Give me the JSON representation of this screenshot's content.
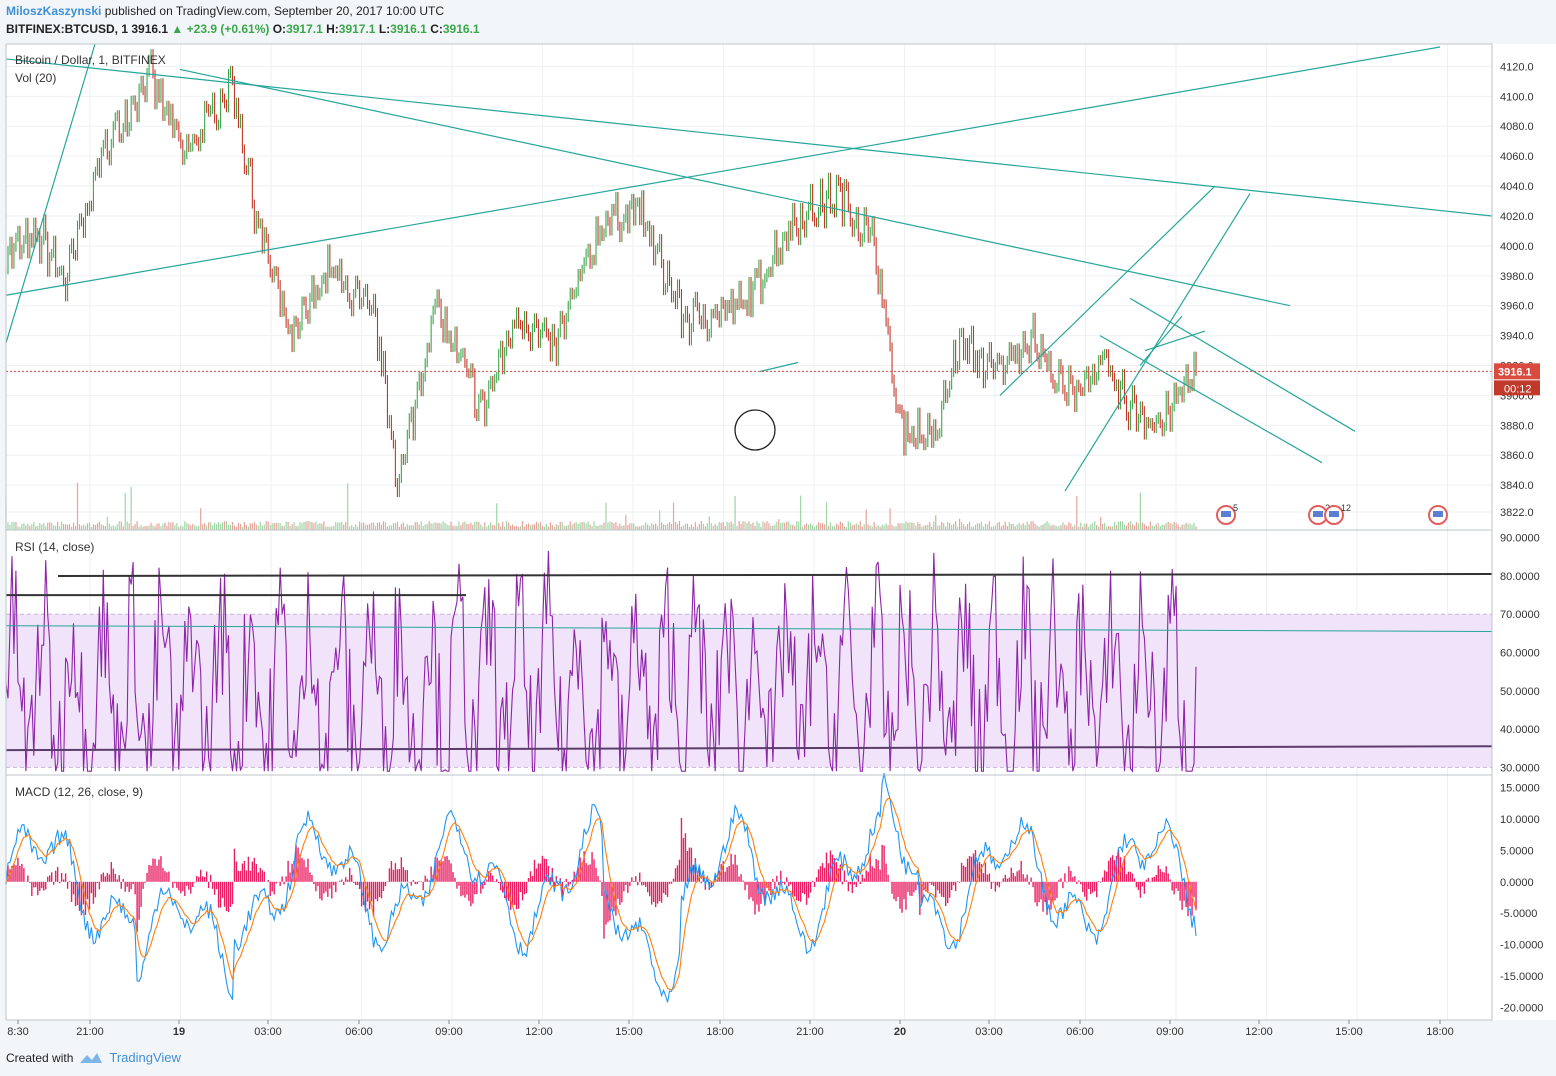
{
  "header": {
    "author": "MiloszKaszynski",
    "published": "published on TradingView.com, September 20, 2017 10:00 UTC",
    "symbol": "BITFINEX:BTCUSD, 1",
    "last": "3916.1",
    "change": "+23.9 (+0.61%)",
    "o_label": "O:",
    "o": "3917.1",
    "h_label": "H:",
    "h": "3917.1",
    "l_label": "L:",
    "l": "3916.1",
    "c_label": "C:",
    "c": "3916.1"
  },
  "panes": {
    "price_title": "Bitcoin / Dollar, 1, BITFINEX",
    "vol_title": "Vol (20)",
    "rsi_title": "RSI (14, close)",
    "macd_title": "MACD (12, 26, close, 9)"
  },
  "price_badge": "3916.1",
  "countdown_badge": "00:12",
  "event_badges": [
    "5",
    "2",
    "12"
  ],
  "footer": {
    "created": "Created with",
    "brand": "TradingView"
  },
  "colors": {
    "up": "#3ba64b",
    "down": "#c0392b",
    "trendline": "#26a69a",
    "rsi": "#8e24aa",
    "rsi_band": "#f1e3fa",
    "macd": "#2196f3",
    "signal": "#ff7f0e",
    "histogram": "#e91e63",
    "price_line": "#d94b3f"
  },
  "chart_data": [
    {
      "type": "line",
      "name": "price",
      "title": "Bitcoin / Dollar, 1, BITFINEX",
      "ylim": [
        3810,
        4135
      ],
      "y_ticks": [
        3822,
        3840,
        3860,
        3880,
        3900,
        3920,
        3940,
        3960,
        3980,
        4000,
        4020,
        4040,
        4060,
        4080,
        4100,
        4120
      ],
      "x_ticks": [
        "8:30",
        "21:00",
        "19",
        "03:00",
        "06:00",
        "09:00",
        "12:00",
        "15:00",
        "18:00",
        "21:00",
        "20",
        "03:00",
        "06:00",
        "09:00",
        "12:00",
        "15:00",
        "18:00"
      ],
      "approx_path": [
        [
          0,
          3995
        ],
        [
          0.03,
          4005
        ],
        [
          0.05,
          3975
        ],
        [
          0.08,
          4060
        ],
        [
          0.12,
          4115
        ],
        [
          0.15,
          4060
        ],
        [
          0.19,
          4110
        ],
        [
          0.21,
          4020
        ],
        [
          0.24,
          3935
        ],
        [
          0.27,
          3985
        ],
        [
          0.31,
          3950
        ],
        [
          0.33,
          3840
        ],
        [
          0.36,
          3960
        ],
        [
          0.4,
          3890
        ],
        [
          0.43,
          3955
        ],
        [
          0.46,
          3930
        ],
        [
          0.5,
          4015
        ],
        [
          0.53,
          4025
        ],
        [
          0.57,
          3950
        ],
        [
          0.62,
          3960
        ],
        [
          0.66,
          4015
        ],
        [
          0.7,
          4035
        ],
        [
          0.73,
          4000
        ],
        [
          0.75,
          3880
        ],
        [
          0.78,
          3870
        ],
        [
          0.8,
          3935
        ],
        [
          0.83,
          3915
        ],
        [
          0.86,
          3940
        ],
        [
          0.89,
          3900
        ],
        [
          0.92,
          3920
        ],
        [
          0.94,
          3895
        ],
        [
          0.97,
          3880
        ],
        [
          1.0,
          3920
        ]
      ],
      "last_value": 3916.1
    },
    {
      "type": "line",
      "name": "RSI (14, close)",
      "ylim": [
        28,
        92
      ],
      "y_ticks": [
        30,
        40,
        50,
        60,
        70,
        80,
        90
      ],
      "band": [
        30,
        70
      ]
    },
    {
      "type": "line",
      "name": "MACD (12, 26, close, 9)",
      "ylim": [
        -22,
        17
      ],
      "y_ticks": [
        15,
        10,
        5,
        0,
        -5,
        -10,
        -15,
        -20
      ]
    }
  ]
}
